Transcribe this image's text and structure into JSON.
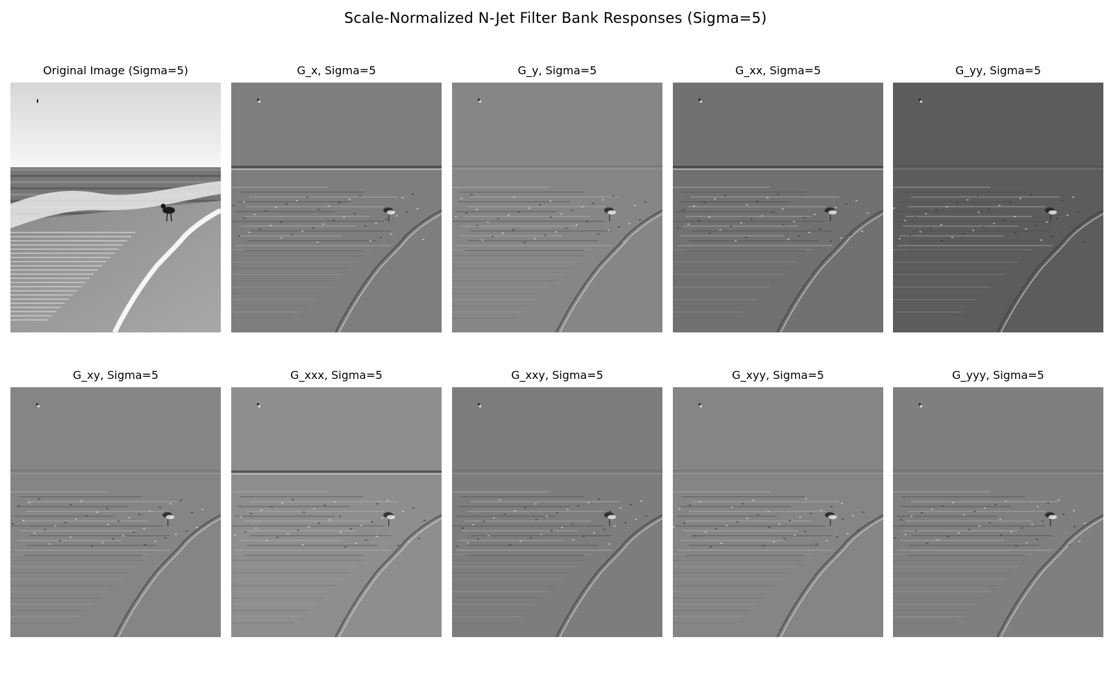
{
  "figure": {
    "title": "Scale-Normalized N-Jet Filter Bank Responses (Sigma=5)"
  },
  "panels": [
    {
      "label": "Original Image (Sigma=5)",
      "kind": "original",
      "base_gray": "#ffffff"
    },
    {
      "label": "G_x, Sigma=5",
      "kind": "response",
      "base_gray": "#7e7e7e"
    },
    {
      "label": "G_y, Sigma=5",
      "kind": "response",
      "base_gray": "#868686"
    },
    {
      "label": "G_xx, Sigma=5",
      "kind": "response",
      "base_gray": "#717171"
    },
    {
      "label": "G_yy, Sigma=5",
      "kind": "response",
      "base_gray": "#5c5c5c"
    },
    {
      "label": "G_xy, Sigma=5",
      "kind": "response",
      "base_gray": "#858585"
    },
    {
      "label": "G_xxx, Sigma=5",
      "kind": "response",
      "base_gray": "#8e8e8e"
    },
    {
      "label": "G_xxy, Sigma=5",
      "kind": "response",
      "base_gray": "#7d7d7d"
    },
    {
      "label": "G_xyy, Sigma=5",
      "kind": "response",
      "base_gray": "#858585"
    },
    {
      "label": "G_yyy, Sigma=5",
      "kind": "response",
      "base_gray": "#7f7f7f"
    }
  ]
}
